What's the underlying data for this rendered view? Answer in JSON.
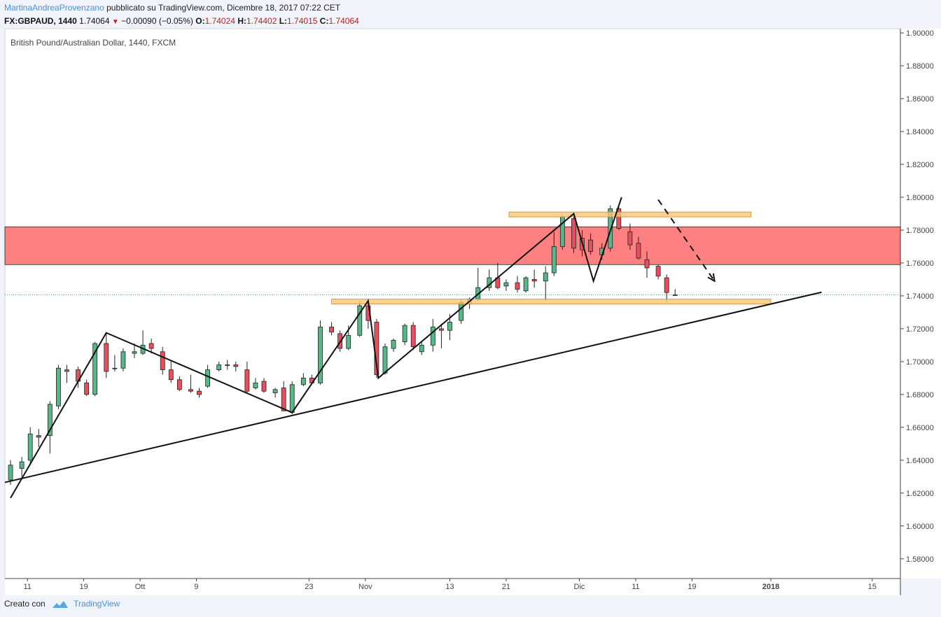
{
  "header": {
    "author": "MartinaAndreaProvenzano",
    "published_text": "pubblicato su TradingView.com, Dicembre 18, 2017 07:22 CET",
    "symbol": "FX:GBPAUD, 1440",
    "last": "1.74064",
    "change": "−0.00090 (−0.05%)",
    "o_label": "O:",
    "o_value": "1.74024",
    "h_label": "H:",
    "h_value": "1.74402",
    "l_label": "L:",
    "l_value": "1.74015",
    "c_label": "C:",
    "c_value": "1.74064"
  },
  "footer": {
    "created_with": "Creato con",
    "brand": "TradingView"
  },
  "colors": {
    "up": "#53b987",
    "down": "#eb4d5c",
    "resistance_zone": "#ff8080",
    "sr_band": "#ffc47a",
    "price_line": "#4aa08a",
    "background": "#ffffff"
  },
  "chart_data": {
    "type": "candlestick",
    "title": "British Pound/Australian Dollar, 1440, FXCM",
    "y_ticks": [
      "1.58000",
      "1.60000",
      "1.62000",
      "1.64000",
      "1.66000",
      "1.68000",
      "1.70000",
      "1.72000",
      "1.74000",
      "1.76000",
      "1.78000",
      "1.80000",
      "1.82000",
      "1.84000",
      "1.86000",
      "1.88000",
      "1.90000"
    ],
    "ylim": [
      1.568,
      1.9
    ],
    "xlim": [
      0,
      159
    ],
    "x_ticks": [
      {
        "label": "11",
        "x": 4
      },
      {
        "label": "19",
        "x": 14
      },
      {
        "label": "Ott",
        "x": 24
      },
      {
        "label": "9",
        "x": 34
      },
      {
        "label": "23",
        "x": 54
      },
      {
        "label": "Nov",
        "x": 64
      },
      {
        "label": "13",
        "x": 79
      },
      {
        "label": "21",
        "x": 89
      },
      {
        "label": "Dic",
        "x": 102
      },
      {
        "label": "11",
        "x": 112
      },
      {
        "label": "19",
        "x": 122
      },
      {
        "label": "2018",
        "x": 136
      },
      {
        "label": "15",
        "x": 154
      }
    ],
    "candles": [
      {
        "x": 1,
        "o": 1.628,
        "h": 1.64,
        "l": 1.625,
        "c": 1.637
      },
      {
        "x": 3,
        "o": 1.635,
        "h": 1.642,
        "l": 1.63,
        "c": 1.639
      },
      {
        "x": 4.5,
        "o": 1.64,
        "h": 1.66,
        "l": 1.637,
        "c": 1.656
      },
      {
        "x": 6,
        "o": 1.655,
        "h": 1.659,
        "l": 1.648,
        "c": 1.654
      },
      {
        "x": 8,
        "o": 1.655,
        "h": 1.676,
        "l": 1.644,
        "c": 1.674
      },
      {
        "x": 9.5,
        "o": 1.673,
        "h": 1.698,
        "l": 1.671,
        "c": 1.696
      },
      {
        "x": 11,
        "o": 1.695,
        "h": 1.698,
        "l": 1.687,
        "c": 1.694
      },
      {
        "x": 13,
        "o": 1.695,
        "h": 1.697,
        "l": 1.684,
        "c": 1.688
      },
      {
        "x": 14.5,
        "o": 1.687,
        "h": 1.689,
        "l": 1.679,
        "c": 1.68
      },
      {
        "x": 16,
        "o": 1.68,
        "h": 1.712,
        "l": 1.679,
        "c": 1.711
      },
      {
        "x": 18,
        "o": 1.711,
        "h": 1.717,
        "l": 1.69,
        "c": 1.694
      },
      {
        "x": 19.5,
        "o": 1.696,
        "h": 1.704,
        "l": 1.694,
        "c": 1.696
      },
      {
        "x": 21,
        "o": 1.696,
        "h": 1.708,
        "l": 1.694,
        "c": 1.706
      },
      {
        "x": 23,
        "o": 1.705,
        "h": 1.711,
        "l": 1.702,
        "c": 1.706
      },
      {
        "x": 24.5,
        "o": 1.705,
        "h": 1.719,
        "l": 1.704,
        "c": 1.71
      },
      {
        "x": 26,
        "o": 1.711,
        "h": 1.714,
        "l": 1.705,
        "c": 1.708
      },
      {
        "x": 28,
        "o": 1.706,
        "h": 1.709,
        "l": 1.692,
        "c": 1.695
      },
      {
        "x": 29.5,
        "o": 1.695,
        "h": 1.701,
        "l": 1.687,
        "c": 1.689
      },
      {
        "x": 31,
        "o": 1.689,
        "h": 1.691,
        "l": 1.682,
        "c": 1.683
      },
      {
        "x": 33,
        "o": 1.683,
        "h": 1.692,
        "l": 1.681,
        "c": 1.682
      },
      {
        "x": 34.5,
        "o": 1.682,
        "h": 1.684,
        "l": 1.678,
        "c": 1.68
      },
      {
        "x": 36,
        "o": 1.685,
        "h": 1.698,
        "l": 1.684,
        "c": 1.695
      },
      {
        "x": 38,
        "o": 1.695,
        "h": 1.7,
        "l": 1.694,
        "c": 1.698
      },
      {
        "x": 39.5,
        "o": 1.698,
        "h": 1.701,
        "l": 1.695,
        "c": 1.698
      },
      {
        "x": 41,
        "o": 1.698,
        "h": 1.7,
        "l": 1.694,
        "c": 1.697
      },
      {
        "x": 43,
        "o": 1.695,
        "h": 1.7,
        "l": 1.681,
        "c": 1.682
      },
      {
        "x": 44.5,
        "o": 1.684,
        "h": 1.69,
        "l": 1.683,
        "c": 1.687
      },
      {
        "x": 46,
        "o": 1.688,
        "h": 1.69,
        "l": 1.681,
        "c": 1.682
      },
      {
        "x": 48,
        "o": 1.681,
        "h": 1.684,
        "l": 1.678,
        "c": 1.683
      },
      {
        "x": 49.5,
        "o": 1.684,
        "h": 1.688,
        "l": 1.67,
        "c": 1.67
      },
      {
        "x": 51,
        "o": 1.669,
        "h": 1.688,
        "l": 1.668,
        "c": 1.686
      },
      {
        "x": 53,
        "o": 1.686,
        "h": 1.693,
        "l": 1.685,
        "c": 1.69
      },
      {
        "x": 54.5,
        "o": 1.69,
        "h": 1.692,
        "l": 1.687,
        "c": 1.687
      },
      {
        "x": 56,
        "o": 1.687,
        "h": 1.725,
        "l": 1.686,
        "c": 1.721
      },
      {
        "x": 58,
        "o": 1.721,
        "h": 1.724,
        "l": 1.716,
        "c": 1.718
      },
      {
        "x": 59.5,
        "o": 1.717,
        "h": 1.719,
        "l": 1.706,
        "c": 1.708
      },
      {
        "x": 61,
        "o": 1.708,
        "h": 1.722,
        "l": 1.707,
        "c": 1.716
      },
      {
        "x": 63,
        "o": 1.716,
        "h": 1.737,
        "l": 1.715,
        "c": 1.734
      },
      {
        "x": 64.5,
        "o": 1.734,
        "h": 1.737,
        "l": 1.72,
        "c": 1.725
      },
      {
        "x": 66,
        "o": 1.724,
        "h": 1.726,
        "l": 1.69,
        "c": 1.692
      },
      {
        "x": 67.5,
        "o": 1.693,
        "h": 1.711,
        "l": 1.692,
        "c": 1.709
      },
      {
        "x": 69,
        "o": 1.708,
        "h": 1.714,
        "l": 1.706,
        "c": 1.713
      },
      {
        "x": 71,
        "o": 1.712,
        "h": 1.723,
        "l": 1.71,
        "c": 1.722
      },
      {
        "x": 72.5,
        "o": 1.722,
        "h": 1.724,
        "l": 1.707,
        "c": 1.709
      },
      {
        "x": 74,
        "o": 1.706,
        "h": 1.712,
        "l": 1.704,
        "c": 1.71
      },
      {
        "x": 76,
        "o": 1.71,
        "h": 1.726,
        "l": 1.706,
        "c": 1.721
      },
      {
        "x": 77.5,
        "o": 1.72,
        "h": 1.723,
        "l": 1.708,
        "c": 1.719
      },
      {
        "x": 79,
        "o": 1.719,
        "h": 1.729,
        "l": 1.713,
        "c": 1.724
      },
      {
        "x": 81,
        "o": 1.725,
        "h": 1.738,
        "l": 1.723,
        "c": 1.736
      },
      {
        "x": 82.5,
        "o": 1.735,
        "h": 1.739,
        "l": 1.732,
        "c": 1.738
      },
      {
        "x": 84,
        "o": 1.738,
        "h": 1.757,
        "l": 1.737,
        "c": 1.745
      },
      {
        "x": 86,
        "o": 1.745,
        "h": 1.756,
        "l": 1.743,
        "c": 1.751
      },
      {
        "x": 87.5,
        "o": 1.751,
        "h": 1.76,
        "l": 1.744,
        "c": 1.745
      },
      {
        "x": 89,
        "o": 1.746,
        "h": 1.75,
        "l": 1.743,
        "c": 1.748
      },
      {
        "x": 91,
        "o": 1.748,
        "h": 1.752,
        "l": 1.742,
        "c": 1.744
      },
      {
        "x": 92.5,
        "o": 1.743,
        "h": 1.752,
        "l": 1.742,
        "c": 1.751
      },
      {
        "x": 94,
        "o": 1.75,
        "h": 1.756,
        "l": 1.745,
        "c": 1.749
      },
      {
        "x": 96,
        "o": 1.749,
        "h": 1.758,
        "l": 1.737,
        "c": 1.754
      },
      {
        "x": 97.5,
        "o": 1.754,
        "h": 1.779,
        "l": 1.752,
        "c": 1.77
      },
      {
        "x": 99,
        "o": 1.77,
        "h": 1.789,
        "l": 1.768,
        "c": 1.788
      },
      {
        "x": 101,
        "o": 1.787,
        "h": 1.79,
        "l": 1.766,
        "c": 1.769
      },
      {
        "x": 102.5,
        "o": 1.775,
        "h": 1.78,
        "l": 1.764,
        "c": 1.768
      },
      {
        "x": 104,
        "o": 1.774,
        "h": 1.778,
        "l": 1.765,
        "c": 1.767
      },
      {
        "x": 106,
        "o": 1.765,
        "h": 1.772,
        "l": 1.762,
        "c": 1.769
      },
      {
        "x": 107.5,
        "o": 1.769,
        "h": 1.795,
        "l": 1.767,
        "c": 1.793
      },
      {
        "x": 109,
        "o": 1.793,
        "h": 1.794,
        "l": 1.78,
        "c": 1.781
      },
      {
        "x": 111,
        "o": 1.779,
        "h": 1.784,
        "l": 1.768,
        "c": 1.771
      },
      {
        "x": 112.5,
        "o": 1.772,
        "h": 1.776,
        "l": 1.762,
        "c": 1.763
      },
      {
        "x": 114,
        "o": 1.762,
        "h": 1.767,
        "l": 1.751,
        "c": 1.757
      },
      {
        "x": 116,
        "o": 1.758,
        "h": 1.759,
        "l": 1.75,
        "c": 1.752
      },
      {
        "x": 117.5,
        "o": 1.751,
        "h": 1.753,
        "l": 1.736,
        "c": 1.742
      },
      {
        "x": 119,
        "o": 1.7402,
        "h": 1.744,
        "l": 1.7402,
        "c": 1.7406
      }
    ],
    "annotations": {
      "resistance_zone": [
        1.759,
        1.782
      ],
      "upper_band": {
        "x0": 89.5,
        "x1": 132.5,
        "y0": 1.788,
        "y1": 1.791
      },
      "lower_band": {
        "x0": 58,
        "x1": 136,
        "y0": 1.735,
        "y1": 1.738
      },
      "trendline": [
        [
          0,
          1.6265
        ],
        [
          145,
          1.7422
        ]
      ],
      "zigzag": [
        [
          1,
          1.617
        ],
        [
          18,
          1.7175
        ],
        [
          51,
          1.669
        ],
        [
          64.5,
          1.737
        ],
        [
          66.3,
          1.69
        ],
        [
          101,
          1.79
        ],
        [
          104.5,
          1.749
        ],
        [
          109.5,
          1.8
        ]
      ],
      "forecast_arrow": [
        [
          116,
          1.7985
        ],
        [
          126,
          1.749
        ]
      ],
      "last_price": 1.74064
    }
  }
}
